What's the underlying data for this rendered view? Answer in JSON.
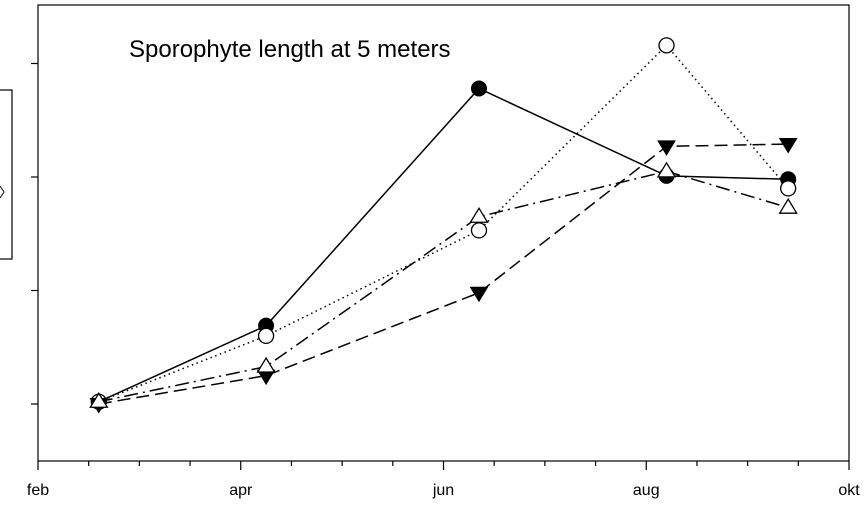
{
  "chart_data": {
    "type": "line",
    "title": "Sporophyte length at 5 meters",
    "xlabel": "",
    "ylabel": "",
    "x_ticks": [
      "feb",
      "apr",
      "jun",
      "aug",
      "okt"
    ],
    "x_tick_months": [
      2,
      4,
      6,
      8,
      10
    ],
    "xlim": [
      2,
      10
    ],
    "ylim": [
      -0.5,
      3.9
    ],
    "y_major_ticks": [
      0,
      1,
      2,
      3
    ],
    "y_tick_labels_visible": false,
    "grid": false,
    "legend": "partially visible box at left edge",
    "series": [
      {
        "marker": "filled-circle",
        "line_style": "solid",
        "x": [
          2.6,
          4.25,
          6.35,
          8.2,
          9.4
        ],
        "y": [
          0.02,
          0.69,
          2.78,
          2.01,
          1.98
        ]
      },
      {
        "marker": "open-circle",
        "line_style": "dotted",
        "x": [
          2.6,
          4.25,
          6.35,
          8.2,
          9.4
        ],
        "y": [
          0.02,
          0.6,
          1.53,
          3.16,
          1.9
        ]
      },
      {
        "marker": "filled-triangle-down",
        "line_style": "dashed",
        "x": [
          2.6,
          4.25,
          6.35,
          8.2,
          9.4
        ],
        "y": [
          0.0,
          0.25,
          0.98,
          2.27,
          2.29
        ]
      },
      {
        "marker": "open-triangle-up",
        "line_style": "dash-dot",
        "x": [
          2.6,
          4.25,
          6.35,
          8.2,
          9.4
        ],
        "y": [
          0.02,
          0.33,
          1.65,
          2.05,
          1.73
        ]
      }
    ]
  }
}
